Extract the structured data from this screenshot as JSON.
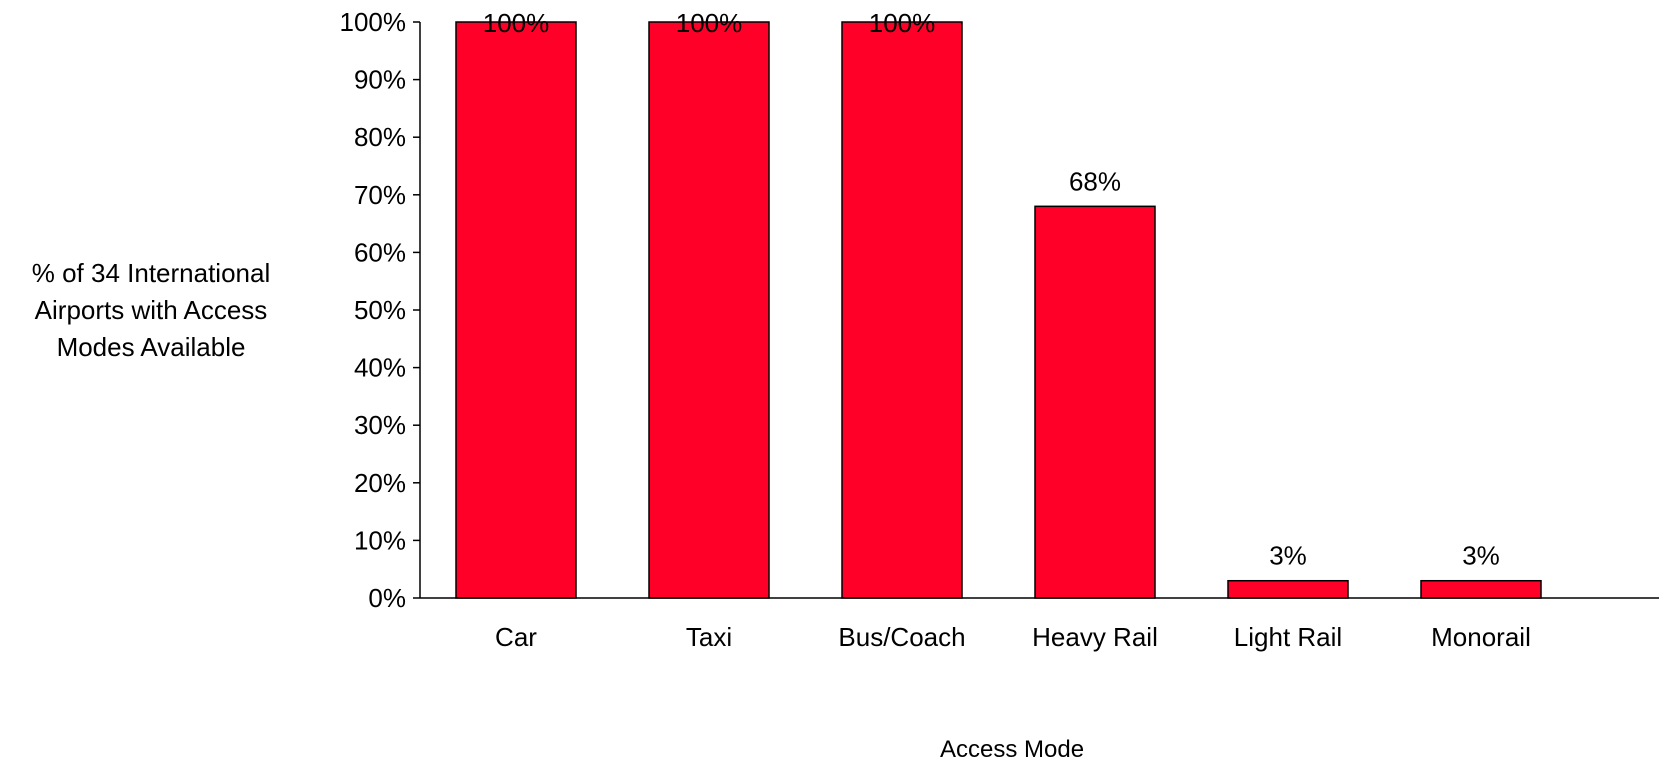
{
  "chart_data": {
    "type": "bar",
    "title": "",
    "ylabel_lines": [
      "% of 34 International",
      "Airports with Access",
      "Modes Available"
    ],
    "xlabel": "Access Mode",
    "categories": [
      "Car",
      "Taxi",
      "Bus/Coach",
      "Heavy Rail",
      "Light Rail",
      "Monorail"
    ],
    "values": [
      100,
      100,
      100,
      68,
      3,
      3
    ],
    "data_labels": [
      "100%",
      "100%",
      "100%",
      "68%",
      "3%",
      "3%"
    ],
    "y_ticks": [
      "0%",
      "10%",
      "20%",
      "30%",
      "40%",
      "50%",
      "60%",
      "70%",
      "80%",
      "90%",
      "100%"
    ],
    "ylim": [
      0,
      100
    ],
    "grid": false,
    "legend": "none",
    "bar_color": "#FF0029",
    "bar_edge_color": "#000000"
  }
}
